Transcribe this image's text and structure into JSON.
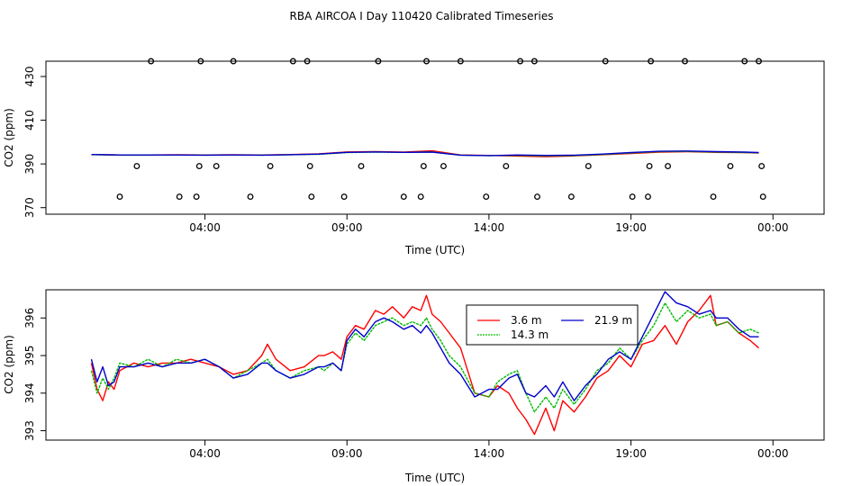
{
  "title": "RBA AIRCOA I  Day 110420  Calibrated Timeseries",
  "chart_data": [
    {
      "type": "scatter",
      "title": "",
      "xlabel": "Time (UTC)",
      "ylabel": "CO2 (ppm)",
      "xlim": [
        -1.6,
        25.8
      ],
      "ylim": [
        367,
        437
      ],
      "xticks": [
        {
          "value": 4,
          "label": "04:00"
        },
        {
          "value": 9,
          "label": "09:00"
        },
        {
          "value": 14,
          "label": "14:00"
        },
        {
          "value": 19,
          "label": "19:00"
        },
        {
          "value": 24,
          "label": "00:00"
        }
      ],
      "yticks": [
        {
          "value": 370,
          "label": "370"
        },
        {
          "value": 390,
          "label": "390"
        },
        {
          "value": 410,
          "label": "410"
        },
        {
          "value": 430,
          "label": "430"
        }
      ],
      "circles": [
        {
          "x": 1.0,
          "y": 375.0
        },
        {
          "x": 1.6,
          "y": 389.0
        },
        {
          "x": 2.1,
          "y": 437.0
        },
        {
          "x": 3.1,
          "y": 375.0
        },
        {
          "x": 3.7,
          "y": 375.0
        },
        {
          "x": 3.8,
          "y": 389.0
        },
        {
          "x": 3.85,
          "y": 437.0
        },
        {
          "x": 4.4,
          "y": 389.0
        },
        {
          "x": 5.0,
          "y": 437.0
        },
        {
          "x": 5.6,
          "y": 375.0
        },
        {
          "x": 6.3,
          "y": 389.0
        },
        {
          "x": 7.1,
          "y": 437.0
        },
        {
          "x": 7.6,
          "y": 437.0
        },
        {
          "x": 7.7,
          "y": 389.0
        },
        {
          "x": 7.75,
          "y": 375.0
        },
        {
          "x": 8.9,
          "y": 375.0
        },
        {
          "x": 9.5,
          "y": 389.0
        },
        {
          "x": 10.1,
          "y": 437.0
        },
        {
          "x": 11.0,
          "y": 375.0
        },
        {
          "x": 11.6,
          "y": 375.0
        },
        {
          "x": 11.7,
          "y": 389.0
        },
        {
          "x": 11.8,
          "y": 437.0
        },
        {
          "x": 12.4,
          "y": 389.0
        },
        {
          "x": 13.0,
          "y": 437.0
        },
        {
          "x": 13.9,
          "y": 375.0
        },
        {
          "x": 14.6,
          "y": 389.0
        },
        {
          "x": 15.1,
          "y": 437.0
        },
        {
          "x": 15.6,
          "y": 437.0
        },
        {
          "x": 15.7,
          "y": 375.0
        },
        {
          "x": 16.9,
          "y": 375.0
        },
        {
          "x": 17.5,
          "y": 389.0
        },
        {
          "x": 18.1,
          "y": 437.0
        },
        {
          "x": 19.05,
          "y": 375.0
        },
        {
          "x": 19.6,
          "y": 375.0
        },
        {
          "x": 19.65,
          "y": 389.0
        },
        {
          "x": 19.7,
          "y": 437.0
        },
        {
          "x": 20.3,
          "y": 389.0
        },
        {
          "x": 20.9,
          "y": 437.0
        },
        {
          "x": 21.9,
          "y": 375.0
        },
        {
          "x": 22.5,
          "y": 389.0
        },
        {
          "x": 23.0,
          "y": 437.0
        },
        {
          "x": 23.5,
          "y": 437.0
        },
        {
          "x": 23.6,
          "y": 389.0
        },
        {
          "x": 23.65,
          "y": 375.0
        }
      ],
      "series": [
        {
          "name": "3.6 m",
          "color": "#ff0000",
          "x": [
            0,
            1,
            2,
            3,
            4,
            5,
            6,
            7,
            8,
            9,
            10,
            11,
            12,
            13,
            14,
            15,
            16,
            17,
            18,
            19,
            20,
            21,
            22,
            23,
            23.5
          ],
          "values": [
            394.3,
            394.1,
            394.1,
            394.2,
            394.1,
            394.2,
            394.1,
            394.3,
            394.6,
            395.5,
            395.6,
            395.4,
            396.0,
            394.1,
            393.9,
            393.6,
            393.3,
            393.7,
            394.2,
            394.8,
            395.4,
            395.6,
            395.3,
            395.2,
            395.0
          ]
        },
        {
          "name": "14.3 m",
          "color": "#00bb00",
          "x": [
            0,
            1,
            2,
            3,
            4,
            5,
            6,
            7,
            8,
            9,
            10,
            11,
            12,
            13,
            14,
            15,
            16,
            17,
            18,
            19,
            20,
            21,
            22,
            23,
            23.5
          ],
          "values": [
            394.2,
            394.0,
            394.0,
            394.1,
            394.0,
            394.1,
            394.0,
            394.2,
            394.4,
            395.2,
            395.4,
            395.3,
            395.5,
            394.0,
            393.8,
            393.9,
            393.7,
            393.8,
            394.3,
            395.0,
            395.6,
            395.7,
            395.4,
            395.2,
            395.1
          ]
        },
        {
          "name": "21.9 m",
          "color": "#0000cc",
          "x": [
            0,
            1,
            2,
            3,
            4,
            5,
            6,
            7,
            8,
            9,
            10,
            11,
            12,
            13,
            14,
            15,
            16,
            17,
            18,
            19,
            20,
            21,
            22,
            23,
            23.5
          ],
          "values": [
            394.3,
            394.1,
            394.1,
            394.1,
            394.0,
            394.1,
            394.0,
            394.2,
            394.5,
            395.3,
            395.5,
            395.3,
            395.4,
            394.0,
            393.8,
            394.1,
            393.9,
            394.0,
            394.5,
            395.2,
            395.8,
            395.9,
            395.6,
            395.4,
            395.2
          ]
        }
      ]
    },
    {
      "type": "line",
      "title": "",
      "xlabel": "Time (UTC)",
      "ylabel": "CO2 (ppm)",
      "xlim": [
        -1.6,
        25.8
      ],
      "ylim": [
        392.75,
        396.75
      ],
      "xticks": [
        {
          "value": 4,
          "label": "04:00"
        },
        {
          "value": 9,
          "label": "09:00"
        },
        {
          "value": 14,
          "label": "14:00"
        },
        {
          "value": 19,
          "label": "19:00"
        },
        {
          "value": 24,
          "label": "00:00"
        }
      ],
      "yticks": [
        {
          "value": 393,
          "label": "393"
        },
        {
          "value": 394,
          "label": "394"
        },
        {
          "value": 395,
          "label": "395"
        },
        {
          "value": 396,
          "label": "396"
        }
      ],
      "legend": {
        "position": "top-center",
        "entries": [
          {
            "label": "3.6 m",
            "color": "#ff0000"
          },
          {
            "label": "21.9 m",
            "color": "#0000cc"
          },
          {
            "label": "14.3 m",
            "color": "#00bb00"
          }
        ]
      },
      "series": [
        {
          "name": "3.6 m",
          "color": "#ff0000",
          "x": [
            0,
            0.2,
            0.4,
            0.6,
            0.8,
            1.0,
            1.5,
            2,
            2.5,
            3,
            3.5,
            4,
            4.5,
            5,
            5.5,
            6,
            6.2,
            6.5,
            7,
            7.5,
            8,
            8.2,
            8.5,
            8.8,
            9,
            9.3,
            9.6,
            10,
            10.3,
            10.6,
            11,
            11.3,
            11.6,
            11.8,
            12,
            12.3,
            12.6,
            13,
            13.5,
            14,
            14.3,
            14.7,
            15,
            15.3,
            15.6,
            16,
            16.3,
            16.6,
            17,
            17.4,
            17.8,
            18.2,
            18.6,
            19,
            19.4,
            19.8,
            20.2,
            20.6,
            21,
            21.4,
            21.8,
            22,
            22.4,
            22.8,
            23.2,
            23.5
          ],
          "values": [
            394.8,
            394.1,
            393.8,
            394.3,
            394.1,
            394.6,
            394.8,
            394.7,
            394.8,
            394.8,
            394.9,
            394.8,
            394.7,
            394.5,
            394.6,
            395.0,
            395.3,
            394.9,
            394.6,
            394.7,
            395.0,
            395.0,
            395.1,
            394.9,
            395.5,
            395.8,
            395.7,
            396.2,
            396.1,
            396.3,
            396.0,
            396.3,
            396.2,
            396.6,
            396.1,
            395.9,
            395.6,
            395.2,
            394.0,
            393.9,
            394.2,
            394.0,
            393.6,
            393.3,
            392.9,
            393.6,
            393.0,
            393.8,
            393.5,
            393.9,
            394.4,
            394.6,
            395.0,
            394.7,
            395.3,
            395.4,
            395.8,
            395.3,
            395.9,
            396.2,
            396.6,
            395.8,
            395.9,
            395.6,
            395.4,
            395.2
          ]
        },
        {
          "name": "14.3 m",
          "color": "#00bb00",
          "x": [
            0,
            0.2,
            0.4,
            0.6,
            0.8,
            1.0,
            1.5,
            2,
            2.5,
            3,
            3.5,
            4,
            4.5,
            5,
            5.5,
            6,
            6.2,
            6.5,
            7,
            7.5,
            8,
            8.2,
            8.5,
            8.8,
            9,
            9.3,
            9.6,
            10,
            10.3,
            10.6,
            11,
            11.3,
            11.6,
            11.8,
            12,
            12.3,
            12.6,
            13,
            13.5,
            14,
            14.3,
            14.7,
            15,
            15.3,
            15.6,
            16,
            16.3,
            16.6,
            17,
            17.4,
            17.8,
            18.2,
            18.6,
            19,
            19.4,
            19.8,
            20.2,
            20.6,
            21,
            21.4,
            21.8,
            22,
            22.4,
            22.8,
            23.2,
            23.5
          ],
          "values": [
            394.6,
            394.0,
            394.4,
            394.1,
            394.4,
            394.8,
            394.7,
            394.9,
            394.7,
            394.9,
            394.8,
            394.9,
            394.7,
            394.4,
            394.6,
            394.8,
            394.9,
            394.6,
            394.4,
            394.6,
            394.7,
            394.6,
            394.8,
            394.6,
            395.3,
            395.6,
            395.4,
            395.8,
            395.9,
            396.0,
            395.8,
            395.9,
            395.8,
            396.0,
            395.7,
            395.4,
            395.0,
            394.7,
            394.0,
            393.9,
            394.3,
            394.5,
            394.6,
            394.0,
            393.5,
            393.9,
            393.6,
            394.1,
            393.7,
            394.1,
            394.6,
            394.8,
            395.2,
            394.9,
            395.4,
            395.8,
            396.4,
            395.9,
            396.2,
            396.0,
            396.1,
            395.8,
            395.9,
            395.6,
            395.7,
            395.6
          ]
        },
        {
          "name": "21.9 m",
          "color": "#0000cc",
          "x": [
            0,
            0.2,
            0.4,
            0.6,
            0.8,
            1.0,
            1.5,
            2,
            2.5,
            3,
            3.5,
            4,
            4.5,
            5,
            5.5,
            6,
            6.2,
            6.5,
            7,
            7.5,
            8,
            8.2,
            8.5,
            8.8,
            9,
            9.3,
            9.6,
            10,
            10.3,
            10.6,
            11,
            11.3,
            11.6,
            11.8,
            12,
            12.3,
            12.6,
            13,
            13.5,
            14,
            14.3,
            14.7,
            15,
            15.3,
            15.6,
            16,
            16.3,
            16.6,
            17,
            17.4,
            17.8,
            18.2,
            18.6,
            19,
            19.4,
            19.8,
            20.2,
            20.6,
            21,
            21.4,
            21.8,
            22,
            22.4,
            22.8,
            23.2,
            23.5
          ],
          "values": [
            394.9,
            394.3,
            394.7,
            394.2,
            394.3,
            394.7,
            394.7,
            394.8,
            394.7,
            394.8,
            394.8,
            394.9,
            394.7,
            394.4,
            394.5,
            394.8,
            394.8,
            394.6,
            394.4,
            394.5,
            394.7,
            394.7,
            394.8,
            394.6,
            395.4,
            395.7,
            395.5,
            395.9,
            396.0,
            395.9,
            395.7,
            395.8,
            395.6,
            395.8,
            395.6,
            395.2,
            394.8,
            394.5,
            393.9,
            394.1,
            394.1,
            394.4,
            394.5,
            394.0,
            393.9,
            394.2,
            393.9,
            394.3,
            393.8,
            394.2,
            394.5,
            394.9,
            395.1,
            394.9,
            395.5,
            396.1,
            396.7,
            396.4,
            396.3,
            396.1,
            396.2,
            396.0,
            396.0,
            395.7,
            395.5,
            395.5
          ]
        }
      ]
    }
  ]
}
